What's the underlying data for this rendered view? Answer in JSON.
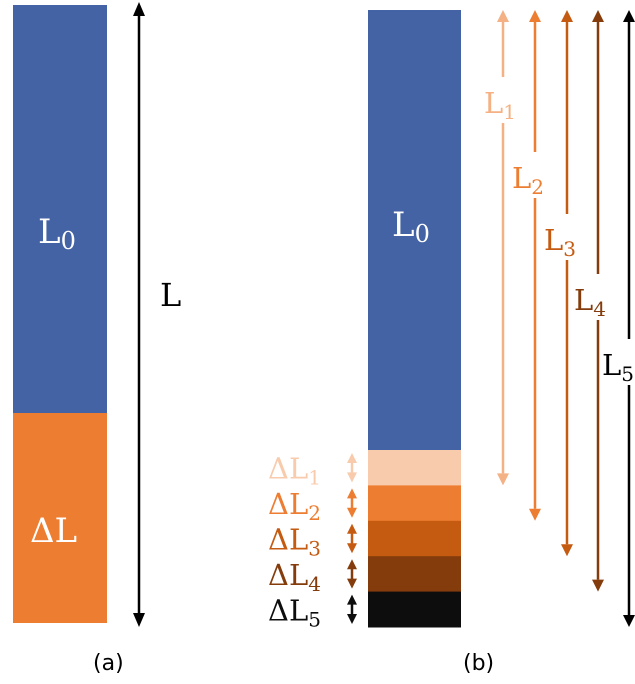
{
  "panel_a": {
    "caption": "(a)",
    "top_label": "L",
    "top_sub": "0",
    "bottom_label": "ΔL",
    "total_label": "L"
  },
  "panel_b": {
    "caption": "(b)",
    "top_label": "L",
    "top_sub": "0",
    "segments": [
      {
        "label": "ΔL",
        "sub": "1",
        "color": "#F8CBAD"
      },
      {
        "label": "ΔL",
        "sub": "2",
        "color": "#ED7D31"
      },
      {
        "label": "ΔL",
        "sub": "3",
        "color": "#C55A11"
      },
      {
        "label": "ΔL",
        "sub": "4",
        "color": "#843C0C"
      },
      {
        "label": "ΔL",
        "sub": "5",
        "color": "#0D0D0D"
      }
    ],
    "lengths": [
      {
        "label": "L",
        "sub": "1",
        "color": "#F4B183"
      },
      {
        "label": "L",
        "sub": "2",
        "color": "#ED7D31"
      },
      {
        "label": "L",
        "sub": "3",
        "color": "#C55A11"
      },
      {
        "label": "L",
        "sub": "4",
        "color": "#843C0C"
      },
      {
        "label": "L",
        "sub": "5",
        "color": "#000000"
      }
    ]
  },
  "colors": {
    "blue": "#4463A4",
    "orange": "#ED7D31",
    "text_white": "#FFFFFF",
    "text_black": "#000000"
  }
}
